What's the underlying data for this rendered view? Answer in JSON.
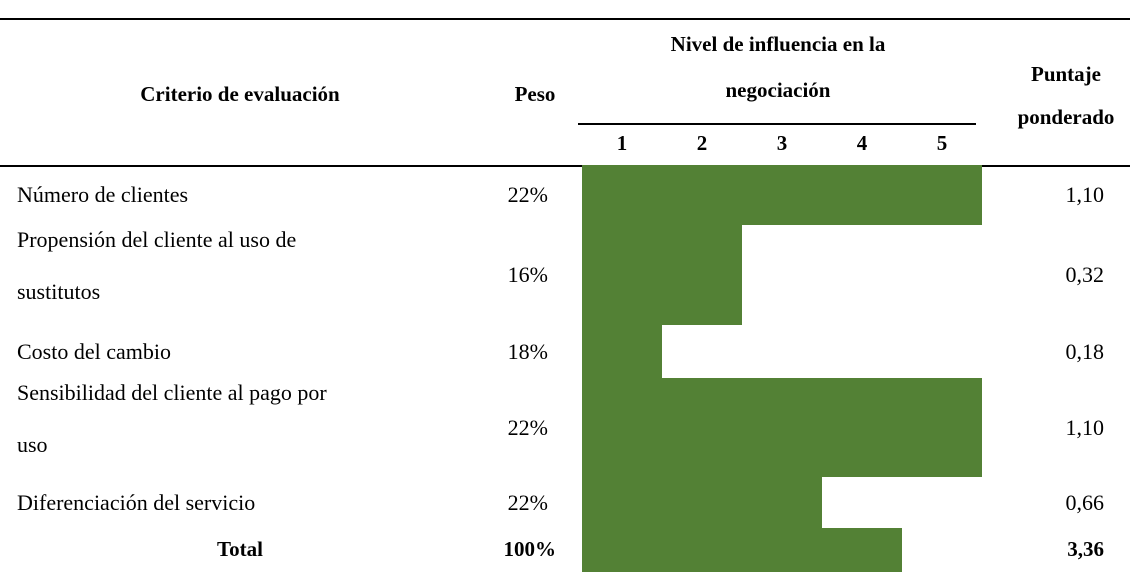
{
  "header": {
    "criterio": "Criterio de evaluación",
    "peso": "Peso",
    "nivel": [
      "Nivel de influencia en la",
      "negociación"
    ],
    "levels": [
      1,
      2,
      3,
      4,
      5
    ],
    "puntaje": [
      "Puntaje",
      "ponderado"
    ]
  },
  "rows": [
    {
      "criterio": [
        "Número de clientes"
      ],
      "peso": "22%",
      "nivel": 5,
      "puntaje": "1,10"
    },
    {
      "criterio": [
        "Propensión del cliente al uso de",
        "sustitutos"
      ],
      "peso": "16%",
      "nivel": 2,
      "puntaje": "0,32"
    },
    {
      "criterio": [
        "Costo del cambio"
      ],
      "peso": "18%",
      "nivel": 1,
      "puntaje": "0,18"
    },
    {
      "criterio": [
        "Sensibilidad del cliente al pago por",
        "uso"
      ],
      "peso": "22%",
      "nivel": 5,
      "puntaje": "1,10"
    },
    {
      "criterio": [
        "Diferenciación del servicio"
      ],
      "peso": "22%",
      "nivel": 3,
      "puntaje": "0,66"
    }
  ],
  "total": {
    "criterio": "Total",
    "peso": "100%",
    "nivel": 4,
    "puntaje": "3,36"
  }
}
